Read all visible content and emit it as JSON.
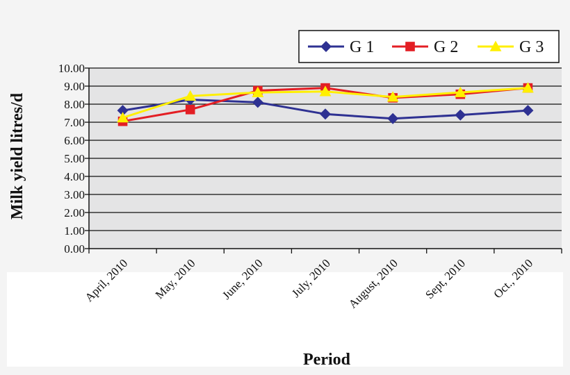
{
  "chart_data": {
    "type": "line",
    "title": "",
    "xlabel": "Period",
    "ylabel": "Milk yield litres/d",
    "categories": [
      "April, 2010",
      "May, 2010",
      "June, 2010",
      "July, 2010",
      "August, 2010",
      "Sept, 2010",
      "Oct., 2010"
    ],
    "ylim": [
      0,
      10
    ],
    "yticks": [
      "0.00",
      "1.00",
      "2.00",
      "3.00",
      "4.00",
      "5.00",
      "6.00",
      "7.00",
      "8.00",
      "9.00",
      "10.00"
    ],
    "grid": true,
    "legend_position": "top-right",
    "series": [
      {
        "name": "G 1",
        "marker": "diamond",
        "color": "#2e3192",
        "values": [
          7.65,
          8.25,
          8.1,
          7.45,
          7.2,
          7.4,
          7.65
        ]
      },
      {
        "name": "G 2",
        "marker": "square",
        "color": "#e31e24",
        "values": [
          7.05,
          7.7,
          8.75,
          8.9,
          8.35,
          8.55,
          8.9
        ]
      },
      {
        "name": "G 3",
        "marker": "triangle",
        "color": "#ffef00",
        "values": [
          7.25,
          8.45,
          8.65,
          8.7,
          8.4,
          8.65,
          8.9
        ]
      }
    ]
  }
}
